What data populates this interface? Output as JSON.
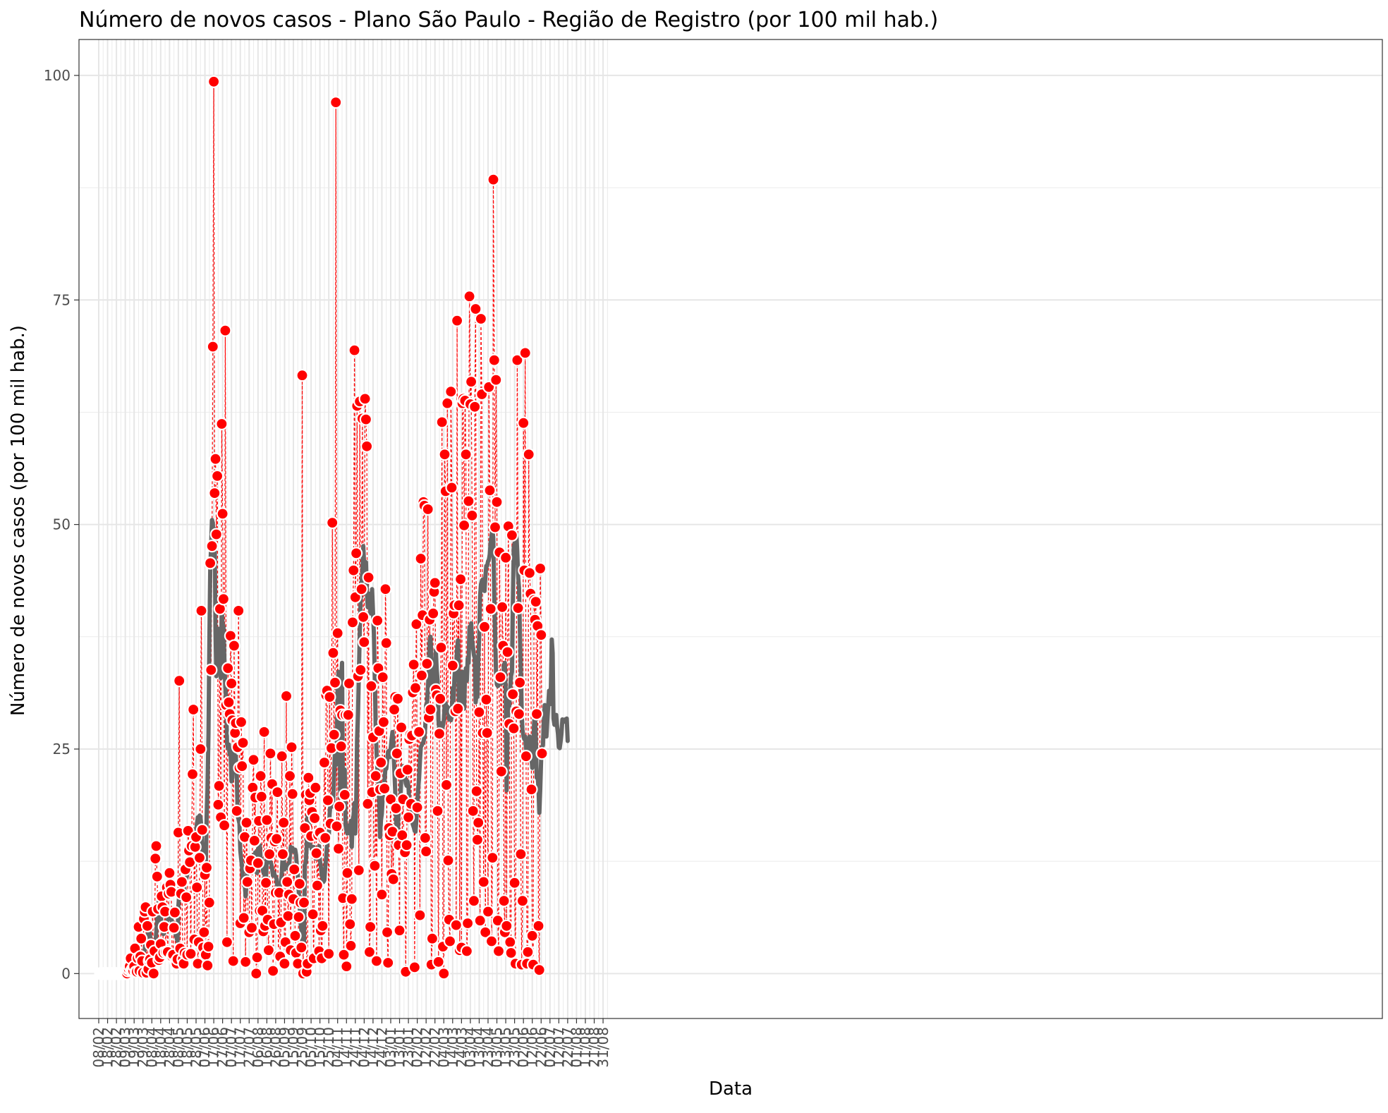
{
  "chart_data": {
    "type": "scatter",
    "title": "Número de novos casos - Plano São Paulo - Região de Registro (por 100 mil hab.)",
    "xlabel": "Data",
    "ylabel": "Número de novos casos (por 100 mil hab.)",
    "ylim": [
      -5,
      104
    ],
    "y_ticks": [
      0,
      25,
      50,
      75,
      100
    ],
    "x_tick_labels": [
      "08/02",
      "18/02",
      "28/02",
      "09/03",
      "19/03",
      "29/03",
      "08/04",
      "18/04",
      "28/04",
      "08/05",
      "18/05",
      "28/05",
      "07/06",
      "17/06",
      "27/06",
      "07/07",
      "17/07",
      "27/07",
      "06/08",
      "16/08",
      "26/08",
      "05/09",
      "15/09",
      "25/09",
      "05/10",
      "15/10",
      "25/10",
      "04/11",
      "14/11",
      "24/11",
      "04/12",
      "14/12",
      "24/12",
      "03/01",
      "13/01",
      "23/01",
      "02/02",
      "12/02",
      "22/02",
      "04/03",
      "14/03",
      "24/03",
      "03/04",
      "13/04",
      "23/04",
      "03/05",
      "13/05",
      "23/05",
      "02/06",
      "12/06",
      "22/06",
      "02/07",
      "12/07",
      "22/07",
      "01/08",
      "11/08",
      "21/08",
      "31/08"
    ],
    "grid": true,
    "legend": "none",
    "colors": {
      "points": "#ff0000",
      "moving_average": "#666666",
      "dashed_lines": "#ff0000"
    },
    "series": [
      {
        "kind": "daily points with dashed connecting line",
        "x_start_day": 2,
        "step_days": 1,
        "values": [
          0,
          0,
          0,
          0,
          0,
          0,
          0,
          0,
          0,
          0,
          0,
          0,
          0,
          0,
          0,
          0,
          0,
          0,
          0,
          0,
          0,
          0,
          0,
          0,
          0,
          0,
          0,
          0,
          0,
          0,
          0,
          0.3,
          0.5,
          0.8,
          1.7,
          0.3,
          0.5,
          0.3,
          0.8,
          2.8,
          0.2,
          0.2,
          1.7,
          5.2,
          0.3,
          1.9,
          3.9,
          1.4,
          0.1,
          6.1,
          6.9,
          7.4,
          0.1,
          5.3,
          0.5,
          1.4,
          1.6,
          3.2,
          1.2,
          6.9,
          0.0,
          2.5,
          12.8,
          14.2,
          10.8,
          7.2,
          1.5,
          1.8,
          3.3,
          8.6,
          7.4,
          2.3,
          5.2,
          6.9,
          2.4,
          9.6,
          2.4,
          8.9,
          11.2,
          9.9,
          9.1,
          1.9,
          2.1,
          5.1,
          6.8,
          1.3,
          1.1,
          1.6,
          15.7,
          32.6,
          2.8,
          8.9,
          10.2,
          1.6,
          1.1,
          2.3,
          11.6,
          8.5,
          2.1,
          15.9,
          13.7,
          12.4,
          2.2,
          14.2,
          22.2,
          29.4,
          3.8,
          14.1,
          15.2,
          9.6,
          1.1,
          3.5,
          12.9,
          25.0,
          40.4,
          16.0,
          2.9,
          4.6,
          11.0,
          2.1,
          11.8,
          0.9,
          3.0,
          7.9,
          45.7,
          33.8,
          47.6,
          69.8,
          99.3,
          53.5,
          57.3,
          48.9,
          55.4,
          18.8,
          20.9,
          40.6,
          17.4,
          61.2,
          51.2,
          41.7,
          16.5,
          71.6,
          29.9,
          3.5,
          34.0,
          30.2,
          28.9,
          37.6,
          32.3,
          28.2,
          1.4,
          36.5,
          26.8,
          27.9,
          18.1,
          25.2,
          40.4,
          22.9,
          5.6,
          28.0,
          23.1,
          25.7,
          6.2,
          15.2,
          1.3,
          16.8,
          10.2,
          4.6,
          4.6,
          11.7,
          12.6,
          5.1,
          20.7,
          23.8,
          14.8,
          19.6,
          0.0,
          1.8,
          12.3,
          17.0,
          7.0,
          22.0,
          19.7,
          7.0,
          4.7,
          26.9,
          5.3,
          10.1,
          17.1,
          6.0,
          2.6,
          13.3,
          24.5,
          15.1,
          21.1,
          0.3,
          5.5,
          14.7,
          9.0,
          15.0,
          20.2,
          2.0,
          9.0,
          1.9,
          5.7,
          24.2,
          13.3,
          16.8,
          1.1,
          3.5,
          30.9,
          10.2,
          6.4,
          8.8,
          22.0,
          2.6,
          25.2,
          20.0,
          8.3,
          11.6,
          4.2,
          2.3,
          1.1,
          1.1,
          6.3,
          10.0,
          7.9,
          2.9,
          66.6,
          0.0,
          7.9,
          16.2,
          19.9,
          0.2,
          1.1,
          21.8,
          19.3,
          20.1,
          15.3,
          18.0,
          6.6,
          1.7,
          17.3,
          20.7,
          13.4,
          9.8,
          15.4,
          2.5,
          15.7,
          4.8,
          1.7,
          5.3,
          15.0,
          23.5,
          15.1,
          31.0,
          31.5,
          19.3,
          2.2,
          30.8,
          16.7,
          25.1,
          50.2,
          35.7,
          26.6,
          32.4,
          97.0,
          16.4,
          37.9,
          13.9,
          18.6,
          29.3,
          25.3,
          28.8,
          8.4,
          2.1,
          19.9,
          28.8,
          0.8,
          11.2,
          28.8,
          32.3,
          5.5,
          3.1,
          8.3,
          39.1,
          44.9,
          69.4,
          41.9,
          46.8,
          63.2,
          33.1,
          11.5,
          63.7,
          33.8,
          42.8,
          61.8,
          39.7,
          36.9,
          64.0,
          61.7,
          58.7,
          18.9,
          44.1,
          2.4,
          5.2,
          32.0,
          20.2,
          26.3,
          12.2,
          12.0,
          22.0,
          1.4,
          39.3,
          34.0,
          27.0,
          20.5,
          23.5,
          8.8,
          33.0,
          28.0,
          20.6,
          42.8,
          36.8,
          4.6,
          1.2,
          16.2,
          15.4,
          19.4,
          11.1,
          15.8,
          10.5,
          29.4,
          30.8,
          18.4,
          24.5,
          30.6,
          14.3,
          4.8,
          22.3,
          27.4,
          15.4,
          19.4,
          13.4,
          13.5,
          0.2,
          14.3,
          22.7,
          17.4,
          26.1,
          26.6,
          18.9,
          26.5,
          31.3,
          34.4,
          0.7,
          31.8,
          38.9,
          18.5,
          26.9,
          26.9,
          6.5,
          46.2,
          33.2,
          39.9,
          52.5,
          52.1,
          15.1,
          13.6,
          34.5,
          51.7,
          28.5,
          39.4,
          29.4,
          1.0,
          3.9,
          40.1,
          42.5,
          43.5,
          31.6,
          31.0,
          18.1,
          1.3,
          26.7,
          30.6,
          36.3,
          61.4,
          3.0,
          0.0,
          57.8,
          53.7,
          21.0,
          63.5,
          12.6,
          6.0,
          3.6,
          64.8,
          54.1,
          34.3,
          40.1,
          41.0,
          29.2,
          5.4,
          72.7,
          29.5,
          41.0,
          2.6,
          43.9,
          2.9,
          63.5,
          64.0,
          49.9,
          63.8,
          57.8,
          2.5,
          5.6,
          52.6,
          75.4,
          63.4,
          65.9,
          51.0,
          18.1,
          8.1,
          63.1,
          74.0,
          20.3,
          14.9,
          16.8,
          29.1,
          5.9,
          72.9,
          64.5,
          26.8,
          10.2,
          38.6,
          4.6,
          30.5,
          26.8,
          6.9,
          65.3,
          53.8,
          40.6,
          3.6,
          12.9,
          88.4,
          68.3,
          49.7,
          66.1,
          52.5,
          5.9,
          2.5,
          46.9,
          33.0,
          22.5,
          40.8,
          36.5,
          8.1,
          4.6,
          46.3,
          5.3,
          35.8,
          49.8,
          27.8,
          3.5,
          2.3,
          48.8,
          31.1,
          27.3,
          10.1,
          1.1,
          29.2,
          68.3,
          40.7,
          28.9,
          32.4,
          13.3,
          1.0,
          8.1,
          61.3,
          44.9,
          69.1,
          24.2,
          1.1,
          2.4,
          57.8,
          44.6,
          42.3,
          20.5,
          4.2,
          1.0,
          41.6,
          39.4,
          41.4,
          28.9,
          38.7,
          5.3,
          0.4,
          45.1,
          37.7,
          24.5
        ]
      },
      {
        "kind": "moving average",
        "x_start_day": 2,
        "step_days": 1,
        "values": [
          0,
          0,
          0,
          0,
          0,
          0,
          0,
          0,
          0,
          0,
          0,
          0,
          0,
          0,
          0,
          0,
          0,
          0,
          0,
          0,
          0,
          0,
          0,
          0,
          0,
          0,
          0,
          0,
          0,
          0,
          0,
          0.0,
          0.1,
          0.3,
          0.5,
          0.5,
          0.6,
          0.6,
          0.3,
          0.3,
          0.4,
          0.4,
          0.7,
          1.3,
          1.2,
          1.5,
          2.1,
          2.2,
          2.3,
          2.4,
          2.7,
          3.3,
          3.6,
          4.0,
          4.5,
          4.8,
          4.2,
          3.5,
          3.2,
          3.1,
          2.9,
          2.8,
          3.3,
          4.5,
          5.8,
          7.5,
          8.1,
          7.3,
          6.8,
          5.4,
          5.1,
          4.4,
          4.5,
          5.1,
          5.6,
          5.8,
          6.0,
          6.2,
          6.1,
          6.5,
          6.1,
          5.7,
          5.4,
          5.4,
          5.2,
          4.3,
          4.0,
          3.6,
          7.5,
          8.9,
          9.4,
          9.2,
          9.0,
          8.6,
          8.7,
          10.1,
          10.1,
          10.6,
          11.0,
          11.7,
          12.3,
          12.9,
          14.2,
          14.3,
          14.4,
          13.4,
          13.9,
          15.4,
          15.6,
          16.7,
          17.4,
          17.1,
          17.6,
          17.4,
          16.3,
          13.6,
          12.8,
          12.4,
          12.5,
          12.0,
          17.4,
          20.7,
          26.7,
          36.8,
          45.1,
          47.5,
          50.5,
          50.2,
          47.2,
          49.5,
          38.1,
          33.1,
          37.9,
          38.4,
          36.2,
          34.6,
          32.9,
          40.6,
          39.0,
          38.6,
          35.0,
          32.1,
          30.5,
          25.6,
          25.1,
          25.5,
          24.4,
          24.9,
          21.4,
          21.8,
          24.1,
          24.9,
          23.7,
          24.2,
          22.2,
          17.6,
          17.2,
          16.7,
          13.7,
          12.7,
          11.9,
          10.2,
          9.8,
          10.0,
          8.6,
          10.0,
          12.1,
          12.5,
          13.0,
          12.5,
          13.0,
          12.0,
          12.6,
          13.2,
          13.0,
          13.5,
          11.3,
          11.2,
          13.9,
          13.4,
          14.3,
          12.7,
          12.8,
          12.2,
          11.3,
          11.4,
          10.5,
          10.4,
          12.9,
          13.5,
          12.8,
          12.7,
          12.4,
          12.2,
          11.6,
          10.9,
          11.3,
          10.9,
          10.8,
          10.5,
          9.3,
          9.0,
          9.5,
          9.8,
          10.1,
          11.4,
          13.2,
          13.0,
          11.6,
          11.7,
          12.1,
          11.8,
          11.9,
          11.6,
          13.1,
          14.1,
          13.7,
          14.0,
          13.6,
          13.7,
          13.8,
          13.2,
          11.8,
          10.9,
          9.2,
          7.8,
          5.8,
          4.8,
          3.6,
          3.1,
          2.8,
          12.1,
          12.4,
          14.0,
          17.5,
          17.8,
          14.8,
          14.2,
          14.2,
          13.8,
          14.0,
          14.1,
          13.3,
          12.8,
          13.3,
          13.5,
          13.8,
          14.2,
          12.6,
          11.9,
          11.0,
          10.6,
          10.2,
          10.4,
          11.9,
          12.9,
          14.3,
          14.9,
          15.2,
          17.8,
          19.0,
          18.8,
          18.6,
          19.0,
          22.1,
          25.1,
          23.2,
          25.7,
          32.0,
          33.6,
          30.9,
          19.6,
          32.6,
          34.6,
          19.9,
          20.6,
          22.7,
          16.5,
          15.9,
          15.6,
          16.2,
          16.5,
          15.6,
          17.0,
          14.1,
          17.1,
          17.6,
          19.0,
          15.6,
          19.1,
          26.0,
          28.8,
          33.3,
          37.9,
          41.7,
          43.5,
          44.6,
          47.6,
          45.6,
          45.3,
          45.8,
          42.6,
          40.8,
          41.0,
          42.3,
          40.1,
          41.1,
          42.8,
          40.2,
          37.9,
          33.0,
          27.8,
          24.6,
          22.7,
          21.4,
          19.2,
          15.2,
          17.1,
          17.8,
          19.8,
          21.2,
          21.4,
          22.9,
          22.8,
          23.8,
          24.7,
          24.8,
          24.1,
          25.1,
          26.1,
          26.9,
          25.6,
          22.9,
          20.4,
          17.6,
          13.9,
          15.8,
          18.6,
          18.6,
          19.5,
          21.8,
          22.4,
          23.1,
          22.8,
          22.1,
          21.2,
          20.9,
          21.4,
          20.9,
          19.2,
          18.7,
          18.9,
          17.0,
          16.6,
          16.3,
          15.9,
          15.8,
          17.1,
          19.0,
          20.5,
          21.7,
          23.6,
          25.2,
          25.4,
          25.6,
          25.8,
          26.3,
          27.4,
          29.9,
          30.1,
          31.7,
          33.5,
          37.0,
          37.5,
          35.0,
          32.1,
          32.4,
          31.5,
          31.8,
          36.0,
          33.8,
          32.6,
          28.2,
          27.0,
          27.9,
          26.6,
          27.1,
          27.6,
          28.2,
          30.0,
          30.1,
          29.6,
          29.7,
          29.6,
          28.3,
          28.9,
          28.2,
          28.6,
          31.8,
          30.4,
          32.8,
          34.1,
          34.4,
          36.1,
          37.1,
          30.5,
          29.8,
          30.9,
          31.7,
          33.6,
          30.0,
          29.5,
          33.2,
          34.0,
          32.6,
          35.1,
          34.6,
          38.6,
          38.0,
          39.0,
          37.1,
          36.3,
          35.5,
          35.1,
          30.2,
          31.1,
          30.8,
          35.0,
          37.4,
          42.0,
          43.3,
          43.7,
          43.9,
          43.4,
          42.6,
          44.2,
          45.4,
          45.4,
          45.9,
          46.1,
          46.7,
          48.0,
          48.8,
          49.4,
          48.4,
          42.0,
          37.8,
          33.5,
          32.2,
          32.0,
          32.1,
          32.8,
          32.7,
          32.3,
          32.4,
          32.8,
          34.4,
          34.6,
          31.2,
          20.4,
          26.9,
          30.1,
          29.8,
          31.7,
          33.1,
          33.6,
          40.9,
          47.4,
          47.9,
          48.5,
          48.9,
          47.0,
          44.3,
          43.0,
          38.4,
          33.8,
          28.9,
          27.1,
          26.4,
          26.1,
          26.4,
          25.1,
          24.3,
          25.1,
          25.6,
          26.4,
          24.3,
          24.1,
          22.9,
          24.7,
          27.7,
          29.1,
          26.3,
          21.8,
          22.0,
          20.7,
          17.9,
          20.5,
          23.9,
          25.2,
          25.4,
          27.8,
          29.9,
          29.0,
          26.4,
          28.2,
          29.8,
          31.5,
          30.0,
          31.6,
          37.2,
          35.7,
          28.4,
          27.7,
          28.3,
          28.8,
          27.6,
          26.7,
          25.2,
          25.1,
          25.8,
          26.7,
          28.3,
          28.0,
          28.2,
          28.3,
          28.2,
          28.4,
          25.9
        ]
      }
    ]
  }
}
